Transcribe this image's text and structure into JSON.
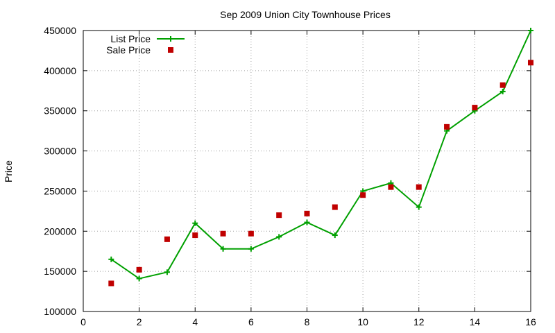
{
  "chart_data": {
    "type": "scatter",
    "title": "Sep 2009 Union City Townhouse Prices",
    "xlabel": "",
    "ylabel": "Price",
    "xlim": [
      0,
      16
    ],
    "ylim": [
      100000,
      450000
    ],
    "xticks": [
      "0",
      "2",
      "4",
      "6",
      "8",
      "10",
      "12",
      "14",
      "16"
    ],
    "yticks": [
      "100000",
      "150000",
      "200000",
      "250000",
      "300000",
      "350000",
      "400000",
      "450000"
    ],
    "grid": true,
    "legend_position": "top-left",
    "series": [
      {
        "name": "List Price",
        "style": "linespoints",
        "marker": "plus",
        "color": "#00a000",
        "x": [
          1,
          2,
          3,
          4,
          5,
          6,
          7,
          8,
          9,
          10,
          11,
          12,
          13,
          14,
          15,
          16
        ],
        "y": [
          165000,
          141000,
          149000,
          210000,
          178000,
          178000,
          193000,
          211000,
          195000,
          250000,
          260000,
          230000,
          325000,
          350000,
          374000,
          450000
        ]
      },
      {
        "name": "Sale Price",
        "style": "points",
        "marker": "square",
        "color": "#c00000",
        "x": [
          1,
          2,
          3,
          4,
          5,
          6,
          7,
          8,
          9,
          10,
          11,
          12,
          13,
          14,
          15,
          16
        ],
        "y": [
          135000,
          152000,
          190000,
          195000,
          197000,
          197000,
          220000,
          222000,
          230000,
          245000,
          255000,
          255000,
          330000,
          354000,
          382000,
          410000
        ]
      }
    ]
  }
}
